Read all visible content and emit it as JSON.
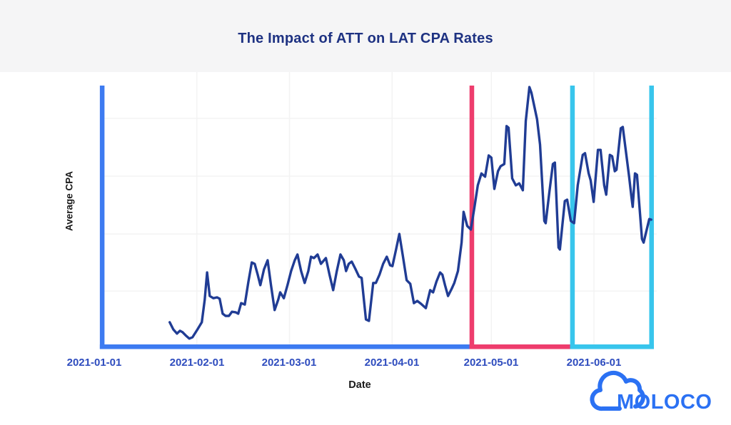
{
  "header": {
    "title": "The Impact of ATT on LAT CPA Rates"
  },
  "logo": {
    "text": "MOLOCO",
    "icon": "cloud-icon",
    "color": "#2b71f3"
  },
  "colors": {
    "title_text": "#1e3282",
    "tick_text": "#2e4cbe",
    "axis_label_text": "#1a1a1a",
    "line": "#203c94",
    "pre_att_box": "#3d7bf1",
    "att_enforced_box": "#ee3d6d",
    "late_period_box": "#38c5ec",
    "gridline": "#f3f3f3",
    "header_strip": "#f5f5f6"
  },
  "chart_data": {
    "type": "line",
    "title": "The Impact of ATT on LAT CPA Rates",
    "xlabel": "Date",
    "ylabel": "Average CPA",
    "x_tick_labels": [
      "2021-01-01",
      "2021-02-01",
      "2021-03-01",
      "2021-04-01",
      "2021-05-01",
      "2021-06-01"
    ],
    "x_tick_days": [
      0,
      31,
      59,
      90,
      120,
      151
    ],
    "x_axis_unit": "days since 2021-01-01",
    "y_axis": {
      "min": 0,
      "max": 100,
      "tick_labels_visible": false
    },
    "legend": "none",
    "grid": {
      "on": true,
      "h_line_values": [
        20.6,
        41.2,
        62.1,
        83.0
      ],
      "v_line_days": [
        31,
        59,
        90,
        120,
        151
      ]
    },
    "series": [
      {
        "name": "Average CPA",
        "color": "#203c94",
        "points": [
          [
            22.8,
            9.3
          ],
          [
            23.9,
            6.7
          ],
          [
            25.0,
            5.2
          ],
          [
            25.9,
            6.2
          ],
          [
            26.7,
            5.7
          ],
          [
            27.6,
            4.6
          ],
          [
            28.7,
            3.4
          ],
          [
            29.7,
            3.9
          ],
          [
            31.2,
            6.7
          ],
          [
            32.5,
            9.3
          ],
          [
            33.4,
            17.5
          ],
          [
            34.1,
            27.3
          ],
          [
            34.9,
            18.8
          ],
          [
            36.0,
            18.0
          ],
          [
            37.1,
            18.3
          ],
          [
            37.9,
            17.8
          ],
          [
            38.8,
            12.4
          ],
          [
            39.7,
            11.6
          ],
          [
            40.7,
            11.6
          ],
          [
            41.6,
            13.1
          ],
          [
            42.7,
            12.9
          ],
          [
            43.5,
            12.4
          ],
          [
            44.4,
            16.2
          ],
          [
            45.5,
            15.7
          ],
          [
            46.6,
            24.0
          ],
          [
            47.6,
            30.9
          ],
          [
            48.5,
            30.4
          ],
          [
            49.4,
            26.5
          ],
          [
            50.2,
            22.7
          ],
          [
            51.3,
            28.4
          ],
          [
            52.4,
            31.7
          ],
          [
            53.4,
            22.7
          ],
          [
            54.5,
            13.7
          ],
          [
            55.6,
            17.5
          ],
          [
            56.2,
            20.1
          ],
          [
            57.3,
            18.0
          ],
          [
            58.4,
            22.7
          ],
          [
            59.5,
            27.8
          ],
          [
            60.6,
            31.7
          ],
          [
            61.4,
            33.8
          ],
          [
            62.5,
            27.8
          ],
          [
            63.6,
            23.5
          ],
          [
            64.7,
            27.8
          ],
          [
            65.5,
            33.0
          ],
          [
            66.4,
            32.5
          ],
          [
            67.5,
            33.8
          ],
          [
            68.5,
            30.4
          ],
          [
            70.0,
            32.5
          ],
          [
            71.1,
            26.5
          ],
          [
            72.2,
            20.9
          ],
          [
            73.3,
            27.8
          ],
          [
            74.4,
            33.8
          ],
          [
            75.4,
            31.7
          ],
          [
            76.1,
            27.8
          ],
          [
            76.9,
            30.4
          ],
          [
            77.8,
            31.2
          ],
          [
            78.9,
            28.6
          ],
          [
            80.0,
            25.8
          ],
          [
            80.8,
            25.3
          ],
          [
            82.1,
            10.3
          ],
          [
            83.0,
            9.8
          ],
          [
            84.3,
            23.5
          ],
          [
            85.1,
            23.5
          ],
          [
            86.2,
            26.5
          ],
          [
            87.3,
            30.4
          ],
          [
            88.4,
            33.0
          ],
          [
            89.4,
            29.9
          ],
          [
            90.1,
            29.6
          ],
          [
            91.2,
            35.6
          ],
          [
            92.2,
            41.2
          ],
          [
            93.3,
            33.0
          ],
          [
            94.4,
            24.5
          ],
          [
            95.5,
            23.2
          ],
          [
            96.6,
            16.2
          ],
          [
            97.6,
            17.0
          ],
          [
            98.7,
            16.0
          ],
          [
            100.2,
            14.4
          ],
          [
            101.5,
            20.9
          ],
          [
            102.4,
            20.1
          ],
          [
            103.4,
            24.0
          ],
          [
            104.5,
            27.3
          ],
          [
            105.2,
            26.5
          ],
          [
            106.0,
            22.7
          ],
          [
            106.9,
            18.8
          ],
          [
            108.0,
            21.4
          ],
          [
            108.8,
            23.5
          ],
          [
            109.9,
            27.8
          ],
          [
            111.0,
            38.1
          ],
          [
            111.6,
            49.2
          ],
          [
            112.7,
            44.1
          ],
          [
            113.8,
            42.8
          ],
          [
            114.9,
            51.0
          ],
          [
            115.9,
            58.8
          ],
          [
            117.0,
            63.1
          ],
          [
            118.1,
            61.9
          ],
          [
            119.2,
            69.6
          ],
          [
            120.0,
            68.8
          ],
          [
            120.9,
            57.5
          ],
          [
            122.0,
            63.9
          ],
          [
            122.8,
            65.7
          ],
          [
            123.9,
            66.5
          ],
          [
            124.6,
            80.2
          ],
          [
            125.2,
            79.6
          ],
          [
            126.3,
            61.3
          ],
          [
            127.4,
            58.8
          ],
          [
            128.4,
            59.5
          ],
          [
            129.5,
            57.0
          ],
          [
            130.4,
            82.0
          ],
          [
            131.5,
            94.3
          ],
          [
            132.1,
            92.3
          ],
          [
            133.8,
            82.7
          ],
          [
            134.7,
            73.5
          ],
          [
            136.0,
            45.9
          ],
          [
            136.4,
            45.1
          ],
          [
            137.5,
            56.2
          ],
          [
            138.6,
            66.5
          ],
          [
            139.2,
            67.0
          ],
          [
            140.3,
            36.3
          ],
          [
            140.7,
            35.6
          ],
          [
            142.2,
            53.1
          ],
          [
            142.9,
            53.6
          ],
          [
            144.0,
            45.9
          ],
          [
            145.0,
            45.1
          ],
          [
            146.1,
            58.8
          ],
          [
            147.6,
            69.8
          ],
          [
            148.3,
            70.4
          ],
          [
            149.4,
            63.1
          ],
          [
            150.0,
            60.6
          ],
          [
            150.9,
            52.8
          ],
          [
            152.2,
            71.6
          ],
          [
            153.0,
            71.6
          ],
          [
            154.1,
            58.8
          ],
          [
            154.7,
            55.4
          ],
          [
            155.8,
            69.8
          ],
          [
            156.5,
            69.3
          ],
          [
            157.3,
            63.9
          ],
          [
            157.8,
            64.4
          ],
          [
            159.1,
            79.4
          ],
          [
            159.7,
            79.9
          ],
          [
            161.6,
            62.1
          ],
          [
            162.3,
            54.9
          ],
          [
            162.7,
            51.0
          ],
          [
            163.4,
            63.1
          ],
          [
            164.0,
            62.6
          ],
          [
            165.5,
            39.4
          ],
          [
            166.0,
            38.1
          ],
          [
            167.7,
            46.6
          ],
          [
            168.3,
            46.4
          ]
        ]
      }
    ],
    "annotations": [
      {
        "name": "blue-period-box",
        "color": "#3d7bf1",
        "start_day": 2.4,
        "end_day": 114.1,
        "borders": [
          "left",
          "bottom"
        ]
      },
      {
        "name": "pink-period-box",
        "color": "#ee3d6d",
        "start_day": 114.1,
        "end_day": 143.8,
        "borders": [
          "left",
          "bottom"
        ]
      },
      {
        "name": "cyan-period-box",
        "color": "#38c5ec",
        "start_day": 144.5,
        "end_day": 168.4,
        "borders": [
          "left",
          "bottom",
          "right"
        ]
      }
    ]
  }
}
